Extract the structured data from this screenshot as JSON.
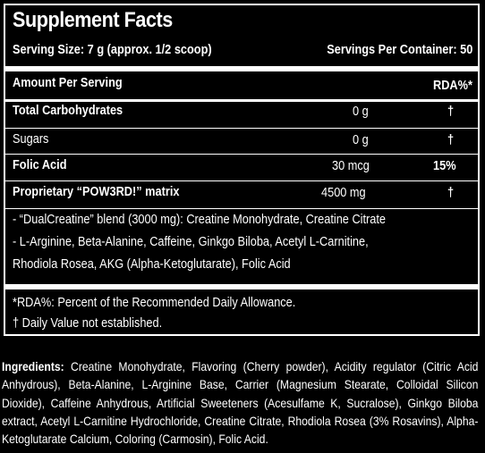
{
  "title": "Supplement Facts",
  "serving_size": "Serving Size: 7 g (approx. 1/2 scoop)",
  "servings_per_container": "Servings Per Container: 50",
  "amount_header": "Amount Per Serving",
  "rda_header": "RDA%*",
  "rows": [
    {
      "name": "Total Carbohydrates",
      "amount": "0 g",
      "rda": "†"
    },
    {
      "name": "Sugars",
      "amount": "0 g",
      "rda": "†"
    },
    {
      "name": "Folic Acid",
      "amount": "30 mcg",
      "rda": "15%"
    },
    {
      "name": "Proprietary “POW3RD!” matrix",
      "amount": "4500 mg",
      "rda": "†"
    }
  ],
  "matrix_lines": [
    "- “DualCreatine” blend (3000 mg): Creatine Monohydrate, Creatine Citrate",
    "- L-Arginine, Beta-Alanine, Caffeine, Ginkgo Biloba, Acetyl L-Carnitine,",
    "Rhodiola Rosea, AKG (Alpha-Ketoglutarate), Folic Acid"
  ],
  "footnotes": [
    "*RDA%: Percent of the Recommended Daily Allowance.",
    "† Daily Value not established."
  ],
  "ingredients_label": "Ingredients:",
  "ingredients_text": "Creatine Monohydrate, Flavoring (Cherry powder), Acidity regulator (Citric Acid Anhydrous), Beta-Alanine, L-Arginine Base, Carrier (Magnesium Stearate, Colloidal Silicon Dioxide), Caffeine Anhydrous, Artificial Sweeteners (Acesulfame K, Sucralose), Ginkgo Biloba extract, Acetyl L-Carnitine Hydrochloride, Creatine Citrate, Rhodiola Rosea (3% Rosavins), Alpha-Ketoglutarate Calcium, Coloring (Carmosin), Folic Acid."
}
